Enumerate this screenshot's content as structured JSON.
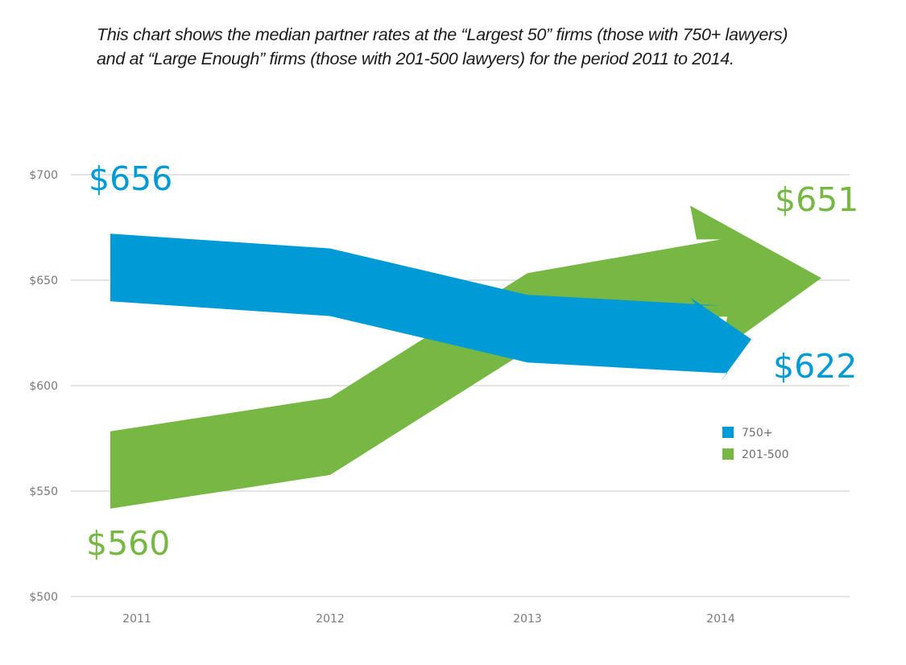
{
  "intro_text": "This chart shows the median partner rates at the “Largest 50” firms (those with 750+ lawyers) and at “Large Enough” firms (those with 201-500 lawyers) for the period 2011 to 2014.",
  "chart_data": {
    "type": "area",
    "title": "",
    "subtitle": "",
    "xlabel": "",
    "ylabel": "",
    "categories": [
      "2011",
      "2012",
      "2013",
      "2014"
    ],
    "y_ticks": [
      "$500",
      "$550",
      "$600",
      "$650",
      "$700"
    ],
    "y_tick_values": [
      500,
      550,
      600,
      650,
      700
    ],
    "ylim": [
      500,
      700
    ],
    "grid": true,
    "legend_position": "right",
    "series": [
      {
        "name": "750+",
        "color": "#009ad7",
        "values": [
          656,
          649,
          627,
          622
        ],
        "start_label": "$656",
        "end_label": "$622"
      },
      {
        "name": "201-500",
        "color": "#76b843",
        "values": [
          560,
          576,
          635,
          651
        ],
        "start_label": "$560",
        "end_label": "$651"
      }
    ]
  }
}
